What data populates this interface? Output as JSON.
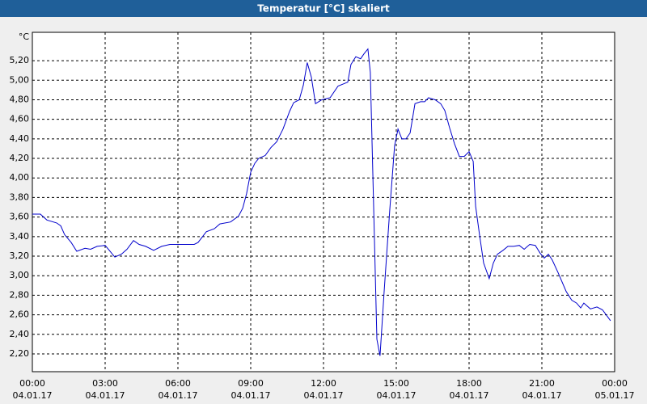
{
  "chart_data": {
    "type": "line",
    "title": "Temperatur [°C] skaliert",
    "y_unit": "°C",
    "x": [
      0,
      0.33,
      0.6,
      1.0,
      1.17,
      1.33,
      1.6,
      1.83,
      2.17,
      2.4,
      2.67,
      3.0,
      3.17,
      3.4,
      3.67,
      3.9,
      4.17,
      4.4,
      4.67,
      5.0,
      5.33,
      5.67,
      6.0,
      6.67,
      6.83,
      7.17,
      7.5,
      7.73,
      8.17,
      8.5,
      8.67,
      8.83,
      9.0,
      9.17,
      9.33,
      9.6,
      9.83,
      10.07,
      10.33,
      10.6,
      10.77,
      11.0,
      11.17,
      11.33,
      11.5,
      11.67,
      11.93,
      12.27,
      12.6,
      13.0,
      13.13,
      13.33,
      13.53,
      13.67,
      13.83,
      13.93,
      14.07,
      14.2,
      14.33,
      14.5,
      14.73,
      14.93,
      15.07,
      15.23,
      15.4,
      15.57,
      15.77,
      16.0,
      16.17,
      16.33,
      16.6,
      16.83,
      17.0,
      17.2,
      17.4,
      17.6,
      17.8,
      18.0,
      18.17,
      18.27,
      18.43,
      18.6,
      18.83,
      19.0,
      19.17,
      19.4,
      19.6,
      19.83,
      20.07,
      20.27,
      20.5,
      20.73,
      20.93,
      21.1,
      21.27,
      21.43,
      21.67,
      22.0,
      22.23,
      22.43,
      22.6,
      22.73,
      23.0,
      23.27,
      23.5,
      23.83
    ],
    "series": [
      {
        "name": "Temperatur",
        "color": "#0000cc",
        "values": [
          3.63,
          3.63,
          3.57,
          3.54,
          3.51,
          3.42,
          3.34,
          3.25,
          3.28,
          3.27,
          3.3,
          3.31,
          3.26,
          3.19,
          3.22,
          3.27,
          3.36,
          3.32,
          3.3,
          3.26,
          3.3,
          3.32,
          3.32,
          3.32,
          3.34,
          3.45,
          3.48,
          3.53,
          3.55,
          3.61,
          3.69,
          3.84,
          4.06,
          4.15,
          4.2,
          4.23,
          4.31,
          4.37,
          4.5,
          4.68,
          4.77,
          4.8,
          4.95,
          5.18,
          5.03,
          4.76,
          4.8,
          4.82,
          4.94,
          4.98,
          5.16,
          5.24,
          5.22,
          5.27,
          5.32,
          5.08,
          3.67,
          2.35,
          2.18,
          2.84,
          3.67,
          4.33,
          4.5,
          4.4,
          4.4,
          4.46,
          4.76,
          4.78,
          4.78,
          4.82,
          4.8,
          4.76,
          4.69,
          4.51,
          4.35,
          4.22,
          4.22,
          4.27,
          4.17,
          3.71,
          3.42,
          3.13,
          2.97,
          3.13,
          3.22,
          3.26,
          3.3,
          3.3,
          3.31,
          3.27,
          3.32,
          3.31,
          3.23,
          3.18,
          3.22,
          3.16,
          3.03,
          2.84,
          2.75,
          2.72,
          2.67,
          2.72,
          2.66,
          2.68,
          2.65,
          2.54
        ]
      }
    ],
    "xlim": [
      0,
      24
    ],
    "xticks": [
      {
        "value": 0,
        "label": "00:00",
        "date": "04.01.17"
      },
      {
        "value": 3,
        "label": "03:00",
        "date": "04.01.17"
      },
      {
        "value": 6,
        "label": "06:00",
        "date": "04.01.17"
      },
      {
        "value": 9,
        "label": "09:00",
        "date": "04.01.17"
      },
      {
        "value": 12,
        "label": "12:00",
        "date": "04.01.17"
      },
      {
        "value": 15,
        "label": "15:00",
        "date": "04.01.17"
      },
      {
        "value": 18,
        "label": "18:00",
        "date": "04.01.17"
      },
      {
        "value": 21,
        "label": "21:00",
        "date": "04.01.17"
      },
      {
        "value": 24,
        "label": "00:00",
        "date": "05.01.17"
      }
    ],
    "ylim": [
      2.018,
      5.49
    ],
    "yticks": [
      {
        "value": 2.2,
        "label": "2,20"
      },
      {
        "value": 2.4,
        "label": "2,40"
      },
      {
        "value": 2.6,
        "label": "2,60"
      },
      {
        "value": 2.8,
        "label": "2,80"
      },
      {
        "value": 3.0,
        "label": "3,00"
      },
      {
        "value": 3.2,
        "label": "3,20"
      },
      {
        "value": 3.4,
        "label": "3,40"
      },
      {
        "value": 3.6,
        "label": "3,60"
      },
      {
        "value": 3.8,
        "label": "3,80"
      },
      {
        "value": 4.0,
        "label": "4,00"
      },
      {
        "value": 4.2,
        "label": "4,20"
      },
      {
        "value": 4.4,
        "label": "4,40"
      },
      {
        "value": 4.6,
        "label": "4,60"
      },
      {
        "value": 4.8,
        "label": "4,80"
      },
      {
        "value": 5.0,
        "label": "5,00"
      },
      {
        "value": 5.2,
        "label": "5,20"
      }
    ],
    "grid": true
  }
}
